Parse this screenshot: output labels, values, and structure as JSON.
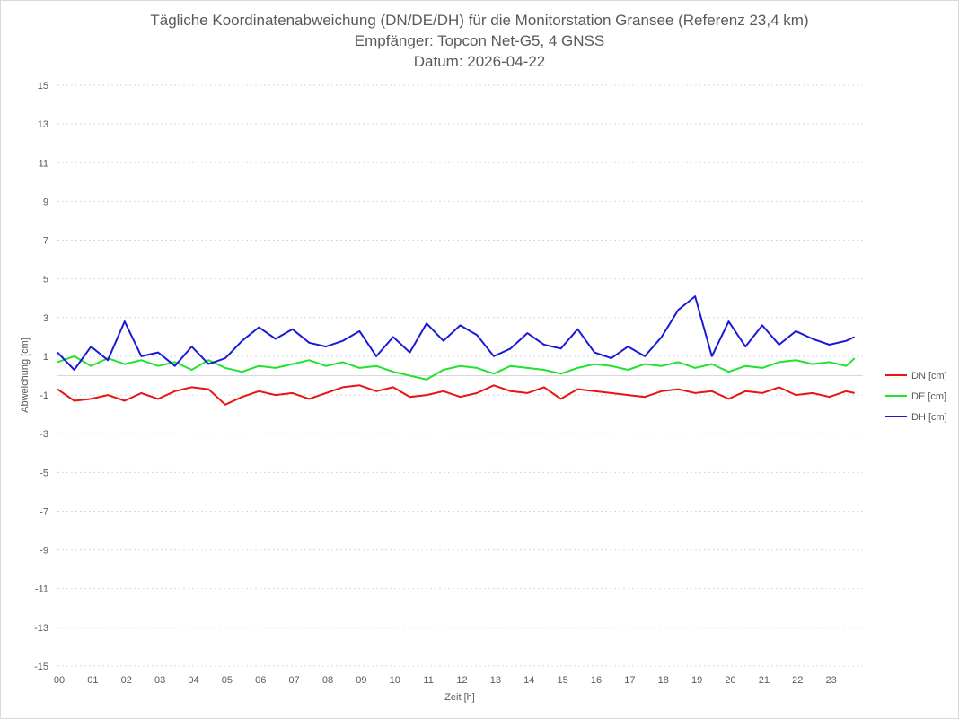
{
  "chart_data": {
    "type": "line",
    "title": "Tägliche Koordinatenabweichung (DN/DE/DH) für die Monitorstation Gransee (Referenz 23,4 km)",
    "subtitle": "Empfänger: Topcon Net-G5, 4 GNSS",
    "date_line": "Datum: 2026-04-22",
    "xlabel": "Zeit [h]",
    "ylabel": "Abweichung [cm]",
    "xlim": [
      0,
      24
    ],
    "ylim": [
      -15,
      15
    ],
    "x_ticks": [
      "00",
      "01",
      "02",
      "03",
      "04",
      "05",
      "06",
      "07",
      "08",
      "09",
      "10",
      "11",
      "12",
      "13",
      "14",
      "15",
      "16",
      "17",
      "18",
      "19",
      "20",
      "21",
      "22",
      "23"
    ],
    "y_ticks": [
      15,
      13,
      11,
      9,
      7,
      5,
      3,
      1,
      -1,
      -3,
      -5,
      -7,
      -9,
      -11,
      -13,
      -15
    ],
    "grid": true,
    "legend_position": "right",
    "series": [
      {
        "name": "DN [cm]",
        "color": "#e81313",
        "x": [
          0,
          0.5,
          1,
          1.5,
          2,
          2.5,
          3,
          3.5,
          4,
          4.5,
          5,
          5.5,
          6,
          6.5,
          7,
          7.5,
          8,
          8.5,
          9,
          9.5,
          10,
          10.5,
          11,
          11.5,
          12,
          12.5,
          13,
          13.5,
          14,
          14.5,
          15,
          15.5,
          16,
          16.5,
          17,
          17.5,
          18,
          18.5,
          19,
          19.5,
          20,
          20.5,
          21,
          21.5,
          22,
          22.5,
          23,
          23.5,
          23.75
        ],
        "y": [
          -0.7,
          -1.3,
          -1.2,
          -1.0,
          -1.3,
          -0.9,
          -1.2,
          -0.8,
          -0.6,
          -0.7,
          -1.5,
          -1.1,
          -0.8,
          -1.0,
          -0.9,
          -1.2,
          -0.9,
          -0.6,
          -0.5,
          -0.8,
          -0.6,
          -1.1,
          -1.0,
          -0.8,
          -1.1,
          -0.9,
          -0.5,
          -0.8,
          -0.9,
          -0.6,
          -1.2,
          -0.7,
          -0.8,
          -0.9,
          -1.0,
          -1.1,
          -0.8,
          -0.7,
          -0.9,
          -0.8,
          -1.2,
          -0.8,
          -0.9,
          -0.6,
          -1.0,
          -0.9,
          -1.1,
          -0.8,
          -0.9
        ]
      },
      {
        "name": "DE [cm]",
        "color": "#22e22e",
        "x": [
          0,
          0.5,
          1,
          1.5,
          2,
          2.5,
          3,
          3.5,
          4,
          4.5,
          5,
          5.5,
          6,
          6.5,
          7,
          7.5,
          8,
          8.5,
          9,
          9.5,
          10,
          10.5,
          11,
          11.5,
          12,
          12.5,
          13,
          13.5,
          14,
          14.5,
          15,
          15.5,
          16,
          16.5,
          17,
          17.5,
          18,
          18.5,
          19,
          19.5,
          20,
          20.5,
          21,
          21.5,
          22,
          22.5,
          23,
          23.5,
          23.75
        ],
        "y": [
          0.7,
          1.0,
          0.5,
          0.9,
          0.6,
          0.8,
          0.5,
          0.7,
          0.3,
          0.8,
          0.4,
          0.2,
          0.5,
          0.4,
          0.6,
          0.8,
          0.5,
          0.7,
          0.4,
          0.5,
          0.2,
          0.0,
          -0.2,
          0.3,
          0.5,
          0.4,
          0.1,
          0.5,
          0.4,
          0.3,
          0.1,
          0.4,
          0.6,
          0.5,
          0.3,
          0.6,
          0.5,
          0.7,
          0.4,
          0.6,
          0.2,
          0.5,
          0.4,
          0.7,
          0.8,
          0.6,
          0.7,
          0.5,
          0.9
        ]
      },
      {
        "name": "DH [cm]",
        "color": "#1a1ad6",
        "x": [
          0,
          0.5,
          1,
          1.5,
          2,
          2.5,
          3,
          3.5,
          4,
          4.5,
          5,
          5.5,
          6,
          6.5,
          7,
          7.5,
          8,
          8.5,
          9,
          9.5,
          10,
          10.5,
          11,
          11.5,
          12,
          12.5,
          13,
          13.5,
          14,
          14.5,
          15,
          15.5,
          16,
          16.5,
          17,
          17.5,
          18,
          18.5,
          19,
          19.5,
          20,
          20.5,
          21,
          21.5,
          22,
          22.5,
          23,
          23.5,
          23.75
        ],
        "y": [
          1.2,
          0.3,
          1.5,
          0.8,
          2.8,
          1.0,
          1.2,
          0.5,
          1.5,
          0.6,
          0.9,
          1.8,
          2.5,
          1.9,
          2.4,
          1.7,
          1.5,
          1.8,
          2.3,
          1.0,
          2.0,
          1.2,
          2.7,
          1.8,
          2.6,
          2.1,
          1.0,
          1.4,
          2.2,
          1.6,
          1.4,
          2.4,
          1.2,
          0.9,
          1.5,
          1.0,
          2.0,
          3.4,
          4.1,
          1.0,
          2.8,
          1.5,
          2.6,
          1.6,
          2.3,
          1.9,
          1.6,
          1.8,
          2.0
        ]
      }
    ]
  }
}
